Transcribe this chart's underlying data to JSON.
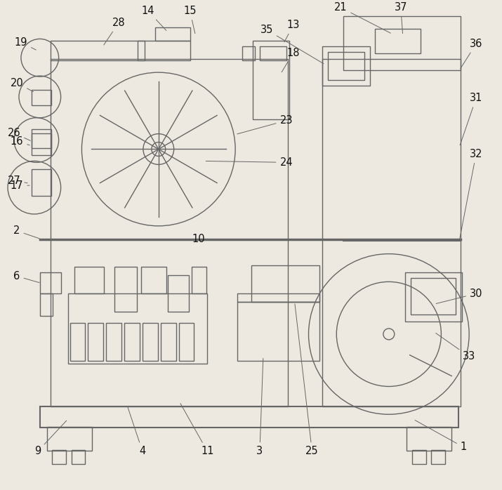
{
  "bg_color": "#ede9e0",
  "line_color": "#666666",
  "line_width": 1.0,
  "fig_width": 7.15,
  "fig_height": 6.98,
  "dpi": 100
}
